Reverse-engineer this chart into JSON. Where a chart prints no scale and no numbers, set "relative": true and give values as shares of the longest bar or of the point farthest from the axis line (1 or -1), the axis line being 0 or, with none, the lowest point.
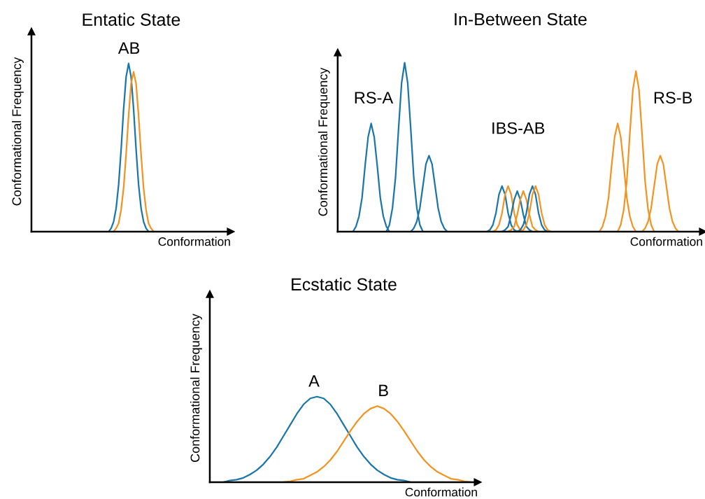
{
  "chart_data": [
    {
      "type": "line",
      "title": "Entatic State",
      "xlabel": "Conformation",
      "ylabel": "Conformational Frequency",
      "relative": true,
      "annotations": [
        "AB"
      ],
      "categories": [
        null,
        null,
        null,
        null,
        null,
        null,
        null,
        null,
        null,
        null,
        null,
        null,
        null,
        null,
        null,
        null,
        null,
        null,
        null,
        null,
        null,
        null,
        null,
        null,
        null,
        null,
        null,
        null,
        null,
        null,
        null,
        null,
        null,
        null,
        null,
        null,
        null,
        null,
        null,
        null,
        null,
        null,
        null,
        null,
        null,
        null,
        null,
        null,
        null,
        null,
        null,
        null,
        null,
        null,
        null,
        null,
        null,
        null,
        null,
        null,
        null,
        null,
        null,
        null,
        null,
        null,
        null,
        null,
        null,
        null,
        null,
        null,
        null,
        null,
        null,
        null,
        null,
        null,
        null,
        null,
        null
      ],
      "series": [
        {
          "color": "#1a76a8",
          "values": [
            null,
            null,
            null,
            null,
            null,
            null,
            null,
            null,
            null,
            null,
            null,
            null,
            null,
            null,
            null,
            null,
            null,
            null,
            null,
            null,
            null,
            null,
            null,
            null,
            null,
            null,
            null,
            null,
            null,
            null,
            null,
            0,
            0.02,
            0.06,
            0.14,
            0.28,
            0.49,
            0.73,
            0.92,
            1,
            0.92,
            0.73,
            0.49,
            0.28,
            0.14,
            0.06,
            0.02,
            0,
            null,
            null,
            null,
            null,
            null,
            null,
            null,
            null,
            null,
            null,
            null,
            null,
            null,
            null,
            null,
            null,
            null,
            null,
            null,
            null,
            null,
            null,
            null,
            null,
            null,
            null,
            null,
            null,
            null,
            null,
            null,
            null,
            null
          ]
        },
        {
          "color": "#f39322",
          "values": [
            null,
            null,
            null,
            null,
            null,
            null,
            null,
            null,
            null,
            null,
            null,
            null,
            null,
            null,
            null,
            null,
            null,
            null,
            null,
            null,
            null,
            null,
            null,
            null,
            null,
            null,
            null,
            null,
            null,
            null,
            null,
            null,
            null,
            0,
            0.02,
            0.05,
            0.13,
            0.26,
            0.46,
            0.69,
            0.88,
            0.95,
            0.88,
            0.69,
            0.46,
            0.26,
            0.13,
            0.05,
            0.02,
            0,
            null,
            null,
            null,
            null,
            null,
            null,
            null,
            null,
            null,
            null,
            null,
            null,
            null,
            null,
            null,
            null,
            null,
            null,
            null,
            null,
            null,
            null,
            null,
            null,
            null,
            null,
            null,
            null,
            null,
            null,
            null
          ]
        }
      ]
    },
    {
      "type": "line",
      "title": "In-Between State",
      "xlabel": "Conformation",
      "ylabel": "Conformational Frequency",
      "relative": true,
      "annotations": [
        "RS-A",
        "IBS-AB",
        "RS-B"
      ],
      "categories": [
        null,
        null,
        null,
        null,
        null,
        null,
        null,
        null,
        null,
        null,
        null,
        null,
        null,
        null,
        null,
        null,
        null,
        null,
        null,
        null,
        null,
        null,
        null,
        null,
        null,
        null,
        null,
        null,
        null,
        null,
        null,
        null,
        null,
        null,
        null,
        null,
        null,
        null,
        null,
        null,
        null,
        null,
        null,
        null,
        null,
        null,
        null,
        null,
        null,
        null,
        null,
        null,
        null,
        null,
        null,
        null,
        null,
        null,
        null,
        null,
        null,
        null,
        null,
        null,
        null,
        null,
        null,
        null,
        null,
        null,
        null,
        null,
        null,
        null,
        null,
        null,
        null,
        null,
        null,
        null,
        null,
        null,
        null,
        null,
        null,
        null,
        null,
        null,
        null,
        null,
        null,
        null,
        null,
        null,
        null,
        null,
        null,
        null,
        null,
        null,
        null,
        null,
        null,
        null,
        null,
        null,
        null,
        null,
        null,
        null,
        null,
        null,
        null,
        null,
        null,
        null,
        null,
        null,
        null,
        null,
        null
      ],
      "series": [
        {
          "color": "#1a76a8",
          "values": [
            null,
            null,
            null,
            null,
            null,
            0,
            0.03,
            0.09,
            0.2,
            0.39,
            0.56,
            0.64,
            0.56,
            0.39,
            0.2,
            0.09,
            0.03,
            0,
            null,
            null,
            null,
            null,
            null,
            null,
            null,
            null,
            null,
            null,
            null,
            null,
            null,
            null,
            null,
            null,
            null,
            null,
            null,
            null,
            null,
            null,
            null,
            null,
            null,
            null,
            null,
            null,
            null,
            null,
            null,
            null,
            null,
            null,
            null,
            null,
            null,
            null,
            null,
            null,
            null,
            null,
            null,
            null,
            null,
            null,
            null,
            null,
            null,
            null,
            null,
            null,
            null,
            null,
            null,
            null,
            null,
            null,
            null,
            null,
            null,
            null,
            null,
            null,
            null,
            null,
            null,
            null,
            null,
            null,
            null,
            null,
            null,
            null,
            null,
            null,
            null,
            null,
            null,
            null,
            null,
            null,
            null,
            null,
            null,
            null,
            null,
            null,
            null,
            null,
            null,
            null,
            null,
            null,
            null,
            null,
            null,
            null,
            null,
            null,
            null,
            null,
            null
          ]
        },
        {
          "color": "#1a76a8",
          "values": [
            null,
            null,
            null,
            null,
            null,
            null,
            null,
            null,
            null,
            null,
            null,
            null,
            null,
            null,
            null,
            null,
            0,
            0.04,
            0.14,
            0.32,
            0.61,
            0.88,
            1,
            0.88,
            0.61,
            0.32,
            0.14,
            0.04,
            0,
            null,
            null,
            null,
            null,
            null,
            null,
            null,
            null,
            null,
            null,
            null,
            null,
            null,
            null,
            null,
            null,
            null,
            null,
            null,
            null,
            null,
            null,
            null,
            null,
            null,
            null,
            null,
            null,
            null,
            null,
            null,
            null,
            null,
            null,
            null,
            null,
            null,
            null,
            null,
            null,
            null,
            null,
            null,
            null,
            null,
            null,
            null,
            null,
            null,
            null,
            null,
            null,
            null,
            null,
            null,
            null,
            null,
            null,
            null,
            null,
            null,
            null,
            null,
            null,
            null,
            null,
            null,
            null,
            null,
            null,
            null,
            null,
            null,
            null,
            null,
            null,
            null,
            null,
            null,
            null,
            null,
            null,
            null,
            null,
            null,
            null,
            null,
            null,
            null,
            null,
            null,
            null
          ]
        },
        {
          "color": "#1a76a8",
          "values": [
            null,
            null,
            null,
            null,
            null,
            null,
            null,
            null,
            null,
            null,
            null,
            null,
            null,
            null,
            null,
            null,
            null,
            null,
            null,
            null,
            null,
            null,
            null,
            null,
            0,
            0.02,
            0.06,
            0.14,
            0.27,
            0.4,
            0.45,
            0.4,
            0.27,
            0.14,
            0.06,
            0.02,
            0,
            null,
            null,
            null,
            null,
            null,
            null,
            null,
            null,
            null,
            null,
            null,
            null,
            null,
            null,
            null,
            null,
            null,
            null,
            null,
            null,
            null,
            null,
            null,
            null,
            null,
            null,
            null,
            null,
            null,
            null,
            null,
            null,
            null,
            null,
            null,
            null,
            null,
            null,
            null,
            null,
            null,
            null,
            null,
            null,
            null,
            null,
            null,
            null,
            null,
            null,
            null,
            null,
            null,
            null,
            null,
            null,
            null,
            null,
            null,
            null,
            null,
            null,
            null,
            null,
            null,
            null,
            null,
            null,
            null,
            null,
            null,
            null,
            null,
            null,
            null,
            null,
            null,
            null,
            null,
            null,
            null,
            null,
            null,
            null
          ]
        },
        {
          "color": "#1a76a8",
          "values": [
            null,
            null,
            null,
            null,
            null,
            null,
            null,
            null,
            null,
            null,
            null,
            null,
            null,
            null,
            null,
            null,
            null,
            null,
            null,
            null,
            null,
            null,
            null,
            null,
            null,
            null,
            null,
            null,
            null,
            null,
            null,
            null,
            null,
            null,
            null,
            null,
            null,
            null,
            null,
            null,
            null,
            null,
            null,
            null,
            null,
            null,
            null,
            null,
            null,
            0,
            0.01,
            0.04,
            0.11,
            0.22,
            0.27,
            0.22,
            0.11,
            0.04,
            0.01,
            0,
            null,
            null,
            null,
            null,
            null,
            null,
            null,
            null,
            null,
            null,
            null,
            null,
            null,
            null,
            null,
            null,
            null,
            null,
            null,
            null,
            null,
            null,
            null,
            null,
            null,
            null,
            null,
            null,
            null,
            null,
            null,
            null,
            null,
            null,
            null,
            null,
            null,
            null,
            null,
            null,
            null,
            null,
            null,
            null,
            null,
            null,
            null,
            null,
            null,
            null,
            null,
            null,
            null,
            null,
            null,
            null,
            null,
            null,
            null,
            null,
            null
          ]
        },
        {
          "color": "#f39322",
          "values": [
            null,
            null,
            null,
            null,
            null,
            null,
            null,
            null,
            null,
            null,
            null,
            null,
            null,
            null,
            null,
            null,
            null,
            null,
            null,
            null,
            null,
            null,
            null,
            null,
            null,
            null,
            null,
            null,
            null,
            null,
            null,
            null,
            null,
            null,
            null,
            null,
            null,
            null,
            null,
            null,
            null,
            null,
            null,
            null,
            null,
            null,
            null,
            null,
            null,
            null,
            null,
            0,
            0.01,
            0.04,
            0.11,
            0.22,
            0.27,
            0.22,
            0.11,
            0.04,
            0.01,
            0,
            null,
            null,
            null,
            null,
            null,
            null,
            null,
            null,
            null,
            null,
            null,
            null,
            null,
            null,
            null,
            null,
            null,
            null,
            null,
            null,
            null,
            null,
            null,
            null,
            null,
            null,
            null,
            null,
            null,
            null,
            null,
            null,
            null,
            null,
            null,
            null,
            null,
            null,
            null,
            null,
            null,
            null,
            null,
            null,
            null,
            null,
            null,
            null,
            null,
            null,
            null,
            null,
            null,
            null,
            null,
            null,
            null,
            null,
            null
          ]
        },
        {
          "color": "#1a76a8",
          "values": [
            null,
            null,
            null,
            null,
            null,
            null,
            null,
            null,
            null,
            null,
            null,
            null,
            null,
            null,
            null,
            null,
            null,
            null,
            null,
            null,
            null,
            null,
            null,
            null,
            null,
            null,
            null,
            null,
            null,
            null,
            null,
            null,
            null,
            null,
            null,
            null,
            null,
            null,
            null,
            null,
            null,
            null,
            null,
            null,
            null,
            null,
            null,
            null,
            null,
            null,
            null,
            null,
            null,
            null,
            0,
            0.01,
            0.03,
            0.1,
            0.19,
            0.24,
            0.19,
            0.1,
            0.03,
            0.01,
            0,
            null,
            null,
            null,
            null,
            null,
            null,
            null,
            null,
            null,
            null,
            null,
            null,
            null,
            null,
            null,
            null,
            null,
            null,
            null,
            null,
            null,
            null,
            null,
            null,
            null,
            null,
            null,
            null,
            null,
            null,
            null,
            null,
            null,
            null,
            null,
            null,
            null,
            null,
            null,
            null,
            null,
            null,
            null,
            null,
            null,
            null,
            null,
            null,
            null,
            null,
            null,
            null,
            null,
            null,
            null,
            null
          ]
        },
        {
          "color": "#f39322",
          "values": [
            null,
            null,
            null,
            null,
            null,
            null,
            null,
            null,
            null,
            null,
            null,
            null,
            null,
            null,
            null,
            null,
            null,
            null,
            null,
            null,
            null,
            null,
            null,
            null,
            null,
            null,
            null,
            null,
            null,
            null,
            null,
            null,
            null,
            null,
            null,
            null,
            null,
            null,
            null,
            null,
            null,
            null,
            null,
            null,
            null,
            null,
            null,
            null,
            null,
            null,
            null,
            null,
            null,
            null,
            null,
            null,
            0,
            0.01,
            0.03,
            0.1,
            0.19,
            0.24,
            0.19,
            0.1,
            0.03,
            0.01,
            0,
            null,
            null,
            null,
            null,
            null,
            null,
            null,
            null,
            null,
            null,
            null,
            null,
            null,
            null,
            null,
            null,
            null,
            null,
            null,
            null,
            null,
            null,
            null,
            null,
            null,
            null,
            null,
            null,
            null,
            null,
            null,
            null,
            null,
            null,
            null,
            null,
            null,
            null,
            null,
            null,
            null,
            null,
            null,
            null,
            null,
            null,
            null,
            null,
            null,
            null,
            null,
            null,
            null,
            null
          ]
        },
        {
          "color": "#1a76a8",
          "values": [
            null,
            null,
            null,
            null,
            null,
            null,
            null,
            null,
            null,
            null,
            null,
            null,
            null,
            null,
            null,
            null,
            null,
            null,
            null,
            null,
            null,
            null,
            null,
            null,
            null,
            null,
            null,
            null,
            null,
            null,
            null,
            null,
            null,
            null,
            null,
            null,
            null,
            null,
            null,
            null,
            null,
            null,
            null,
            null,
            null,
            null,
            null,
            null,
            null,
            null,
            null,
            null,
            null,
            null,
            null,
            null,
            null,
            null,
            null,
            0,
            0.01,
            0.04,
            0.11,
            0.22,
            0.27,
            0.22,
            0.11,
            0.04,
            0.01,
            0,
            null,
            null,
            null,
            null,
            null,
            null,
            null,
            null,
            null,
            null,
            null,
            null,
            null,
            null,
            null,
            null,
            null,
            null,
            null,
            null,
            null,
            null,
            null,
            null,
            null,
            null,
            null,
            null,
            null,
            null,
            null,
            null,
            null,
            null,
            null,
            null,
            null,
            null,
            null,
            null,
            null,
            null,
            null,
            null,
            null,
            null,
            null,
            null,
            null,
            null,
            null
          ]
        },
        {
          "color": "#f39322",
          "values": [
            null,
            null,
            null,
            null,
            null,
            null,
            null,
            null,
            null,
            null,
            null,
            null,
            null,
            null,
            null,
            null,
            null,
            null,
            null,
            null,
            null,
            null,
            null,
            null,
            null,
            null,
            null,
            null,
            null,
            null,
            null,
            null,
            null,
            null,
            null,
            null,
            null,
            null,
            null,
            null,
            null,
            null,
            null,
            null,
            null,
            null,
            null,
            null,
            null,
            null,
            null,
            null,
            null,
            null,
            null,
            null,
            null,
            null,
            null,
            null,
            0,
            0.01,
            0.04,
            0.11,
            0.22,
            0.27,
            0.22,
            0.11,
            0.04,
            0.01,
            0,
            null,
            null,
            null,
            null,
            null,
            null,
            null,
            null,
            null,
            null,
            null,
            null,
            null,
            null,
            null,
            null,
            null,
            null,
            null,
            null,
            null,
            null,
            null,
            null,
            null,
            null,
            null,
            null,
            null,
            null,
            null,
            null,
            null,
            null,
            null,
            null,
            null,
            null,
            null,
            null,
            null,
            null,
            null,
            null,
            null,
            null,
            null,
            null,
            null,
            null
          ]
        },
        {
          "color": "#f39322",
          "values": [
            null,
            null,
            null,
            null,
            null,
            null,
            null,
            null,
            null,
            null,
            null,
            null,
            null,
            null,
            null,
            null,
            null,
            null,
            null,
            null,
            null,
            null,
            null,
            null,
            null,
            null,
            null,
            null,
            null,
            null,
            null,
            null,
            null,
            null,
            null,
            null,
            null,
            null,
            null,
            null,
            null,
            null,
            null,
            null,
            null,
            null,
            null,
            null,
            null,
            null,
            null,
            null,
            null,
            null,
            null,
            null,
            null,
            null,
            null,
            null,
            null,
            null,
            null,
            null,
            null,
            null,
            null,
            null,
            null,
            null,
            null,
            null,
            null,
            null,
            null,
            null,
            null,
            null,
            null,
            null,
            null,
            null,
            null,
            null,
            null,
            null,
            0,
            0.03,
            0.09,
            0.2,
            0.39,
            0.56,
            0.64,
            0.56,
            0.39,
            0.2,
            0.09,
            0.03,
            0,
            null,
            null,
            null,
            null,
            null,
            null,
            null,
            null,
            null,
            null,
            null,
            null,
            null,
            null,
            null,
            null,
            null,
            null,
            null,
            null,
            null,
            null
          ]
        },
        {
          "color": "#f39322",
          "values": [
            null,
            null,
            null,
            null,
            null,
            null,
            null,
            null,
            null,
            null,
            null,
            null,
            null,
            null,
            null,
            null,
            null,
            null,
            null,
            null,
            null,
            null,
            null,
            null,
            null,
            null,
            null,
            null,
            null,
            null,
            null,
            null,
            null,
            null,
            null,
            null,
            null,
            null,
            null,
            null,
            null,
            null,
            null,
            null,
            null,
            null,
            null,
            null,
            null,
            null,
            null,
            null,
            null,
            null,
            null,
            null,
            null,
            null,
            null,
            null,
            null,
            null,
            null,
            null,
            null,
            null,
            null,
            null,
            null,
            null,
            null,
            null,
            null,
            null,
            null,
            null,
            null,
            null,
            null,
            null,
            null,
            null,
            null,
            null,
            null,
            null,
            null,
            null,
            null,
            null,
            null,
            null,
            0,
            0.04,
            0.13,
            0.3,
            0.58,
            0.84,
            0.95,
            0.84,
            0.58,
            0.3,
            0.13,
            0.04,
            0,
            null,
            null,
            null,
            null,
            null,
            null,
            null,
            null,
            null,
            null,
            null,
            null,
            null,
            null,
            null,
            null
          ]
        },
        {
          "color": "#f39322",
          "values": [
            null,
            null,
            null,
            null,
            null,
            null,
            null,
            null,
            null,
            null,
            null,
            null,
            null,
            null,
            null,
            null,
            null,
            null,
            null,
            null,
            null,
            null,
            null,
            null,
            null,
            null,
            null,
            null,
            null,
            null,
            null,
            null,
            null,
            null,
            null,
            null,
            null,
            null,
            null,
            null,
            null,
            null,
            null,
            null,
            null,
            null,
            null,
            null,
            null,
            null,
            null,
            null,
            null,
            null,
            null,
            null,
            null,
            null,
            null,
            null,
            null,
            null,
            null,
            null,
            null,
            null,
            null,
            null,
            null,
            null,
            null,
            null,
            null,
            null,
            null,
            null,
            null,
            null,
            null,
            null,
            null,
            null,
            null,
            null,
            null,
            null,
            null,
            null,
            null,
            null,
            null,
            null,
            null,
            null,
            null,
            null,
            null,
            null,
            null,
            null,
            0,
            0.02,
            0.06,
            0.14,
            0.27,
            0.4,
            0.45,
            0.4,
            0.27,
            0.14,
            0.06,
            0.02,
            0,
            null,
            null,
            null,
            null,
            null,
            null,
            null,
            null
          ]
        }
      ]
    },
    {
      "type": "line",
      "title": "Ecstatic State",
      "xlabel": "Conformation",
      "ylabel": "Conformational Frequency",
      "relative": true,
      "annotations": [
        "A",
        "B"
      ],
      "categories": [
        null,
        null,
        null,
        null,
        null,
        null,
        null,
        null,
        null,
        null,
        null,
        null,
        null,
        null,
        null,
        null,
        null,
        null,
        null,
        null,
        null,
        null,
        null,
        null,
        null,
        null,
        null,
        null,
        null,
        null,
        null,
        null,
        null,
        null,
        null,
        null,
        null,
        null,
        null,
        null,
        null
      ],
      "series": [
        {
          "color": "#1a76a8",
          "values": [
            null,
            null,
            0,
            0.02,
            0.03,
            0.05,
            0.09,
            0.14,
            0.21,
            0.3,
            0.41,
            0.54,
            0.67,
            0.8,
            0.91,
            0.98,
            1,
            0.98,
            0.91,
            0.8,
            0.67,
            0.54,
            0.41,
            0.3,
            0.21,
            0.14,
            0.09,
            0.05,
            0.03,
            0.02,
            0,
            null,
            null,
            null,
            null,
            null,
            null,
            null,
            null,
            null,
            null
          ]
        },
        {
          "color": "#f39322",
          "values": [
            null,
            null,
            null,
            null,
            null,
            null,
            null,
            null,
            null,
            null,
            null,
            0,
            0.01,
            0.03,
            0.04,
            0.08,
            0.12,
            0.18,
            0.26,
            0.36,
            0.48,
            0.6,
            0.71,
            0.8,
            0.86,
            0.89,
            0.86,
            0.8,
            0.71,
            0.6,
            0.48,
            0.36,
            0.26,
            0.18,
            0.12,
            0.08,
            0.04,
            0.03,
            0.01,
            0,
            null
          ]
        }
      ]
    }
  ]
}
